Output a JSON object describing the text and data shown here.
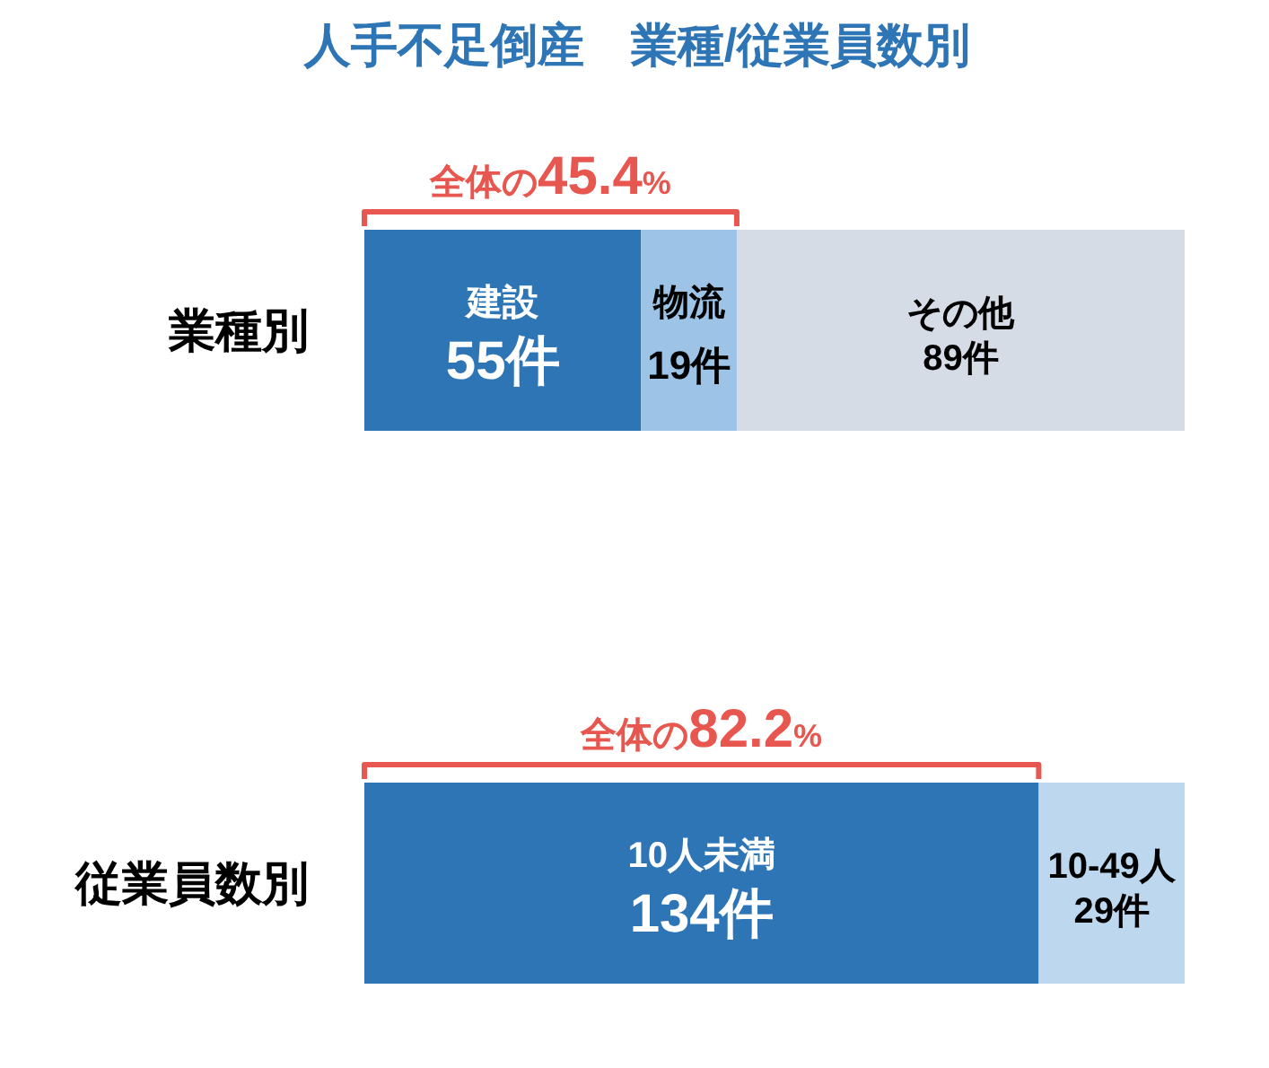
{
  "chart_data": {
    "type": "bar",
    "orientation": "horizontal",
    "stacked": true,
    "title": "人手不足倒産　業種/従業員数別",
    "categories": [
      "業種別",
      "従業員数別"
    ],
    "series": [
      {
        "color": "#2e75b6",
        "values": [
          55,
          134
        ],
        "value_labels": [
          "建設\n55件",
          "10人未満\n134件"
        ]
      },
      {
        "colors": [
          "#9dc3e6",
          "#bdd7ee"
        ],
        "values": [
          19,
          29
        ],
        "value_labels": [
          "物流\n19件",
          "10-49人\n29件"
        ]
      },
      {
        "color": "#d6dce5",
        "values": [
          89,
          null
        ],
        "value_labels": [
          "その他\n89件",
          null
        ]
      }
    ],
    "annotations": [
      "全体の45.4%",
      "全体の82.2%"
    ]
  }
}
